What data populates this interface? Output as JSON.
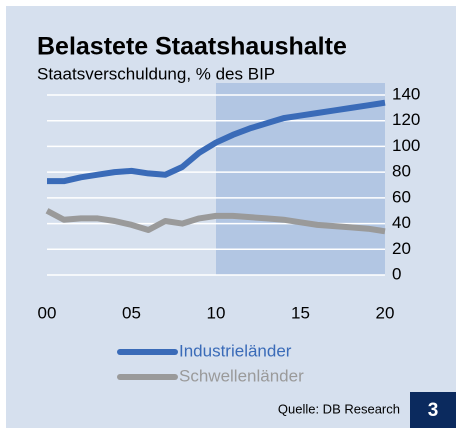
{
  "chart_data": {
    "type": "line",
    "title": "Belastete Staatshaushalte",
    "subtitle": "Staatsverschuldung, % des BIP",
    "x": [
      0,
      1,
      2,
      3,
      4,
      5,
      6,
      7,
      8,
      9,
      10,
      11,
      12,
      13,
      14,
      15,
      16,
      17,
      18,
      19,
      20
    ],
    "series": [
      {
        "name": "Industrieländer",
        "color": "#3a6bb8",
        "values": [
          73,
          73,
          76,
          78,
          80,
          81,
          79,
          78,
          84,
          95,
          103,
          109,
          114,
          118,
          122,
          124,
          126,
          128,
          130,
          132,
          134
        ]
      },
      {
        "name": "Schwellenländer",
        "color": "#9a9a9a",
        "values": [
          50,
          43,
          44,
          44,
          42,
          39,
          35,
          42,
          40,
          44,
          46,
          46,
          45,
          44,
          43,
          41,
          39,
          38,
          37,
          36,
          34
        ]
      }
    ],
    "xlim": [
      0,
      20
    ],
    "xticks": [
      {
        "value": 0,
        "label": "00"
      },
      {
        "value": 5,
        "label": "05"
      },
      10,
      15,
      20
    ],
    "ylim": [
      0,
      140
    ],
    "yticks": [
      0,
      20,
      40,
      60,
      80,
      100,
      120,
      140
    ],
    "grid": true,
    "shade_from": 10,
    "source": "Quelle: DB Research",
    "badge": "3"
  }
}
